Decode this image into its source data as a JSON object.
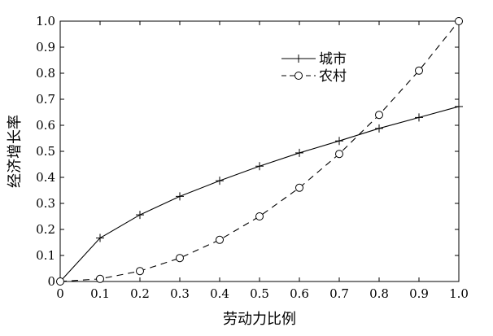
{
  "chart_data": {
    "type": "line",
    "xlabel": "劳动力比例",
    "ylabel": "经济增长率",
    "xlim": [
      0,
      1.0
    ],
    "ylim": [
      0,
      1.0
    ],
    "xticks": [
      "0",
      "0.1",
      "0.2",
      "0.3",
      "0.4",
      "0.5",
      "0.6",
      "0.7",
      "0.8",
      "0.9",
      "1.0"
    ],
    "yticks": [
      "0",
      "0.1",
      "0.2",
      "0.3",
      "0.4",
      "0.5",
      "0.6",
      "0.7",
      "0.8",
      "0.9",
      "1.0"
    ],
    "grid": false,
    "legend_position": "top-right",
    "x": [
      0,
      0.1,
      0.2,
      0.3,
      0.4,
      0.5,
      0.6,
      0.7,
      0.8,
      0.9,
      1.0
    ],
    "series": [
      {
        "name": "城市",
        "line_style": "solid",
        "marker": "plus",
        "color": "#000000",
        "values": [
          0,
          0.167,
          0.256,
          0.327,
          0.387,
          0.443,
          0.494,
          0.54,
          0.588,
          0.63,
          0.672
        ]
      },
      {
        "name": "农村",
        "line_style": "dashed",
        "marker": "circle",
        "color": "#000000",
        "values": [
          0,
          0.01,
          0.04,
          0.09,
          0.16,
          0.25,
          0.36,
          0.49,
          0.64,
          0.81,
          1.0
        ]
      }
    ]
  }
}
